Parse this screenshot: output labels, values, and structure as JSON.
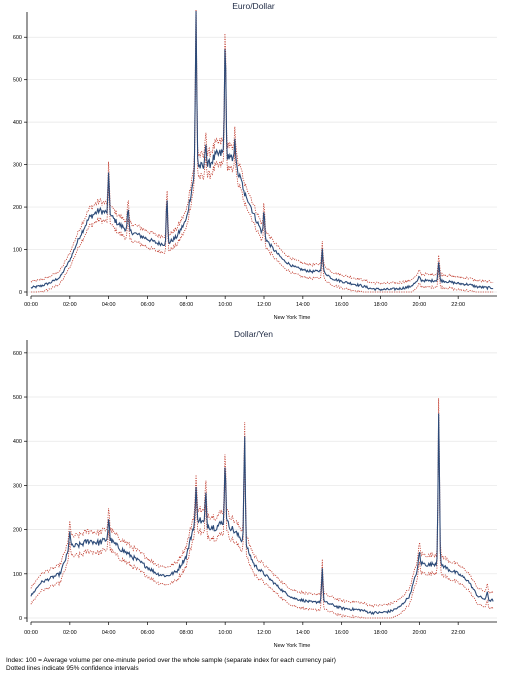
{
  "footnotes": {
    "line1": "Index: 100 = Average volume per one-minute period over the whole sample  (separate index for each currency pair)",
    "line2": "Dotted lines indicate 95% confidence intervals"
  },
  "colors": {
    "series": "#2c4a78",
    "ci": "#c0392b",
    "grid": "#e6e6e6",
    "axis": "#000000"
  },
  "chart_data": [
    {
      "type": "line",
      "title": "Euro/Dollar",
      "xlabel": "New York Time",
      "ylabel": "",
      "xlim": [
        0,
        24
      ],
      "ylim": [
        0,
        650
      ],
      "xticks": [
        0,
        2,
        4,
        6,
        8,
        10,
        12,
        14,
        16,
        18,
        20,
        22
      ],
      "xtick_labels": [
        "00:00",
        "02:00",
        "04:00",
        "06:00",
        "08:00",
        "10:00",
        "12:00",
        "14:00",
        "16:00",
        "18:00",
        "20:00",
        "22:00"
      ],
      "yticks": [
        0,
        100,
        200,
        300,
        400,
        500,
        600
      ],
      "grid": true,
      "series_points": [
        [
          0,
          10
        ],
        [
          0.5,
          14
        ],
        [
          1,
          22
        ],
        [
          1.5,
          35
        ],
        [
          2,
          75
        ],
        [
          2.5,
          130
        ],
        [
          3,
          175
        ],
        [
          3.5,
          192
        ],
        [
          4,
          185
        ],
        [
          4.5,
          160
        ],
        [
          5,
          145
        ],
        [
          5.5,
          135
        ],
        [
          6,
          125
        ],
        [
          6.5,
          115
        ],
        [
          7,
          112
        ],
        [
          7.5,
          130
        ],
        [
          8,
          170
        ],
        [
          8.5,
          300
        ],
        [
          9,
          290
        ],
        [
          9.5,
          320
        ],
        [
          10,
          330
        ],
        [
          10.5,
          300
        ],
        [
          11,
          240
        ],
        [
          11.5,
          180
        ],
        [
          12,
          130
        ],
        [
          12.5,
          100
        ],
        [
          13,
          75
        ],
        [
          13.5,
          60
        ],
        [
          14,
          52
        ],
        [
          14.5,
          48
        ],
        [
          15,
          50
        ],
        [
          15.5,
          32
        ],
        [
          16,
          25
        ],
        [
          16.5,
          20
        ],
        [
          17,
          15
        ],
        [
          17.5,
          8
        ],
        [
          18,
          6
        ],
        [
          18.5,
          6
        ],
        [
          19,
          8
        ],
        [
          19.5,
          12
        ],
        [
          20,
          28
        ],
        [
          20.5,
          26
        ],
        [
          21,
          28
        ],
        [
          21.5,
          24
        ],
        [
          22,
          20
        ],
        [
          22.5,
          18
        ],
        [
          23,
          12
        ],
        [
          23.5,
          10
        ]
      ],
      "spikes": [
        [
          4,
          275
        ],
        [
          5,
          195
        ],
        [
          7,
          220
        ],
        [
          8.5,
          660
        ],
        [
          9,
          360
        ],
        [
          10,
          600
        ],
        [
          10.5,
          370
        ],
        [
          11,
          220
        ],
        [
          12,
          190
        ],
        [
          15,
          100
        ],
        [
          20,
          38
        ],
        [
          21,
          70
        ]
      ],
      "ci_halfwidth": 14
    },
    {
      "type": "line",
      "title": "Dollar/Yen",
      "xlabel": "New York Time",
      "ylabel": "",
      "xlim": [
        0,
        24
      ],
      "ylim": [
        0,
        620
      ],
      "xticks": [
        0,
        2,
        4,
        6,
        8,
        10,
        12,
        14,
        16,
        18,
        20,
        22
      ],
      "xtick_labels": [
        "00:00",
        "02:00",
        "04:00",
        "06:00",
        "08:00",
        "10:00",
        "12:00",
        "14:00",
        "16:00",
        "18:00",
        "20:00",
        "22:00"
      ],
      "yticks": [
        0,
        100,
        200,
        300,
        400,
        500,
        600
      ],
      "grid": true,
      "series_points": [
        [
          0,
          50
        ],
        [
          0.5,
          80
        ],
        [
          1,
          90
        ],
        [
          1.5,
          100
        ],
        [
          2,
          160
        ],
        [
          2.5,
          165
        ],
        [
          3,
          175
        ],
        [
          3.5,
          170
        ],
        [
          4,
          180
        ],
        [
          4.5,
          160
        ],
        [
          5,
          145
        ],
        [
          5.5,
          130
        ],
        [
          6,
          115
        ],
        [
          6.5,
          100
        ],
        [
          7,
          95
        ],
        [
          7.5,
          105
        ],
        [
          8,
          140
        ],
        [
          8.5,
          230
        ],
        [
          9,
          210
        ],
        [
          9.5,
          205
        ],
        [
          10,
          220
        ],
        [
          10.5,
          195
        ],
        [
          11,
          170
        ],
        [
          11.5,
          120
        ],
        [
          12,
          100
        ],
        [
          12.5,
          80
        ],
        [
          13,
          60
        ],
        [
          13.5,
          45
        ],
        [
          14,
          40
        ],
        [
          14.5,
          35
        ],
        [
          15,
          38
        ],
        [
          15.5,
          30
        ],
        [
          16,
          22
        ],
        [
          16.5,
          20
        ],
        [
          17,
          18
        ],
        [
          17.5,
          12
        ],
        [
          18,
          12
        ],
        [
          18.5,
          15
        ],
        [
          19,
          25
        ],
        [
          19.5,
          50
        ],
        [
          20,
          125
        ],
        [
          20.5,
          120
        ],
        [
          21,
          125
        ],
        [
          21.5,
          110
        ],
        [
          22,
          100
        ],
        [
          22.5,
          85
        ],
        [
          23,
          50
        ],
        [
          23.5,
          40
        ]
      ],
      "spikes": [
        [
          2,
          200
        ],
        [
          4,
          225
        ],
        [
          8.5,
          290
        ],
        [
          9,
          280
        ],
        [
          10,
          355
        ],
        [
          11,
          415
        ],
        [
          15,
          110
        ],
        [
          20,
          150
        ],
        [
          21,
          470
        ],
        [
          23.5,
          60
        ]
      ],
      "ci_halfwidth": 16
    }
  ]
}
